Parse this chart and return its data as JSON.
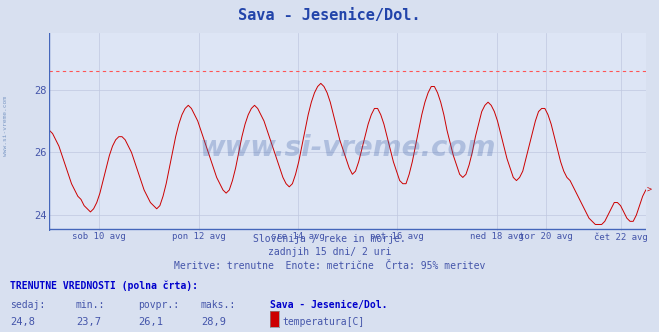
{
  "title": "Sava - Jesenice/Dol.",
  "title_color": "#2244aa",
  "background_color": "#d8e0f0",
  "plot_bg_color": "#dde5f5",
  "grid_color": "#c0c8e0",
  "line_color": "#cc0000",
  "line_width": 0.8,
  "hline_color": "#ff5555",
  "hline_y": 28.6,
  "bottom_line_color": "#4466bb",
  "bottom_line_y": 23.55,
  "left_line_color": "#4466bb",
  "ylim": [
    23.5,
    29.8
  ],
  "yticks": [
    24,
    26,
    28
  ],
  "xlabel_color": "#4455aa",
  "xtick_labels": [
    "sob 10 avg",
    "pon 12 avg",
    "sre 14 avg",
    "pet 16 avg",
    "ned 18 avg",
    "tor 20 avg",
    "čet 22 avg"
  ],
  "xtick_positions": [
    0.083,
    0.25,
    0.417,
    0.583,
    0.75,
    0.833,
    0.958
  ],
  "subtitle1": "Slovenija / reke in morje.",
  "subtitle2": "zadnjih 15 dni/ 2 uri",
  "subtitle3": "Meritve: trenutne  Enote: metrične  Črta: 95% meritev",
  "subtitle_color": "#4455aa",
  "footer_title": "TRENUTNE VREDNOSTI (polna črta):",
  "footer_color": "#0000cc",
  "footer_labels": [
    "sedaj:",
    "min.:",
    "povpr.:",
    "maks.:"
  ],
  "footer_values": [
    "24,8",
    "23,7",
    "26,1",
    "28,9"
  ],
  "footer_station": "Sava - Jesenice/Dol.",
  "footer_param": "temperatura[C]",
  "footer_param_color": "#cc0000",
  "watermark": "www.si-vreme.com",
  "watermark_color": "#4466aa",
  "watermark_alpha": 0.3,
  "side_label": "www.si-vreme.com",
  "side_label_color": "#6688bb",
  "y_values": [
    26.7,
    26.6,
    26.4,
    26.2,
    25.9,
    25.6,
    25.3,
    25.0,
    24.8,
    24.6,
    24.5,
    24.3,
    24.2,
    24.1,
    24.2,
    24.4,
    24.7,
    25.1,
    25.5,
    25.9,
    26.2,
    26.4,
    26.5,
    26.5,
    26.4,
    26.2,
    26.0,
    25.7,
    25.4,
    25.1,
    24.8,
    24.6,
    24.4,
    24.3,
    24.2,
    24.3,
    24.6,
    25.0,
    25.5,
    26.0,
    26.5,
    26.9,
    27.2,
    27.4,
    27.5,
    27.4,
    27.2,
    27.0,
    26.7,
    26.4,
    26.1,
    25.8,
    25.5,
    25.2,
    25.0,
    24.8,
    24.7,
    24.8,
    25.1,
    25.5,
    26.0,
    26.5,
    26.9,
    27.2,
    27.4,
    27.5,
    27.4,
    27.2,
    27.0,
    26.7,
    26.4,
    26.1,
    25.8,
    25.5,
    25.2,
    25.0,
    24.9,
    25.0,
    25.3,
    25.7,
    26.2,
    26.7,
    27.2,
    27.6,
    27.9,
    28.1,
    28.2,
    28.1,
    27.9,
    27.6,
    27.2,
    26.8,
    26.4,
    26.1,
    25.8,
    25.5,
    25.3,
    25.4,
    25.7,
    26.1,
    26.5,
    26.9,
    27.2,
    27.4,
    27.4,
    27.2,
    26.9,
    26.5,
    26.1,
    25.7,
    25.4,
    25.1,
    25.0,
    25.0,
    25.3,
    25.7,
    26.2,
    26.7,
    27.2,
    27.6,
    27.9,
    28.1,
    28.1,
    27.9,
    27.6,
    27.2,
    26.7,
    26.3,
    25.9,
    25.6,
    25.3,
    25.2,
    25.3,
    25.6,
    26.0,
    26.5,
    26.9,
    27.3,
    27.5,
    27.6,
    27.5,
    27.3,
    27.0,
    26.6,
    26.2,
    25.8,
    25.5,
    25.2,
    25.1,
    25.2,
    25.4,
    25.8,
    26.2,
    26.6,
    27.0,
    27.3,
    27.4,
    27.4,
    27.2,
    26.9,
    26.5,
    26.1,
    25.7,
    25.4,
    25.2,
    25.1,
    24.9,
    24.7,
    24.5,
    24.3,
    24.1,
    23.9,
    23.8,
    23.7,
    23.7,
    23.7,
    23.8,
    24.0,
    24.2,
    24.4,
    24.4,
    24.3,
    24.1,
    23.9,
    23.8,
    23.8,
    24.0,
    24.3,
    24.6,
    24.8
  ]
}
